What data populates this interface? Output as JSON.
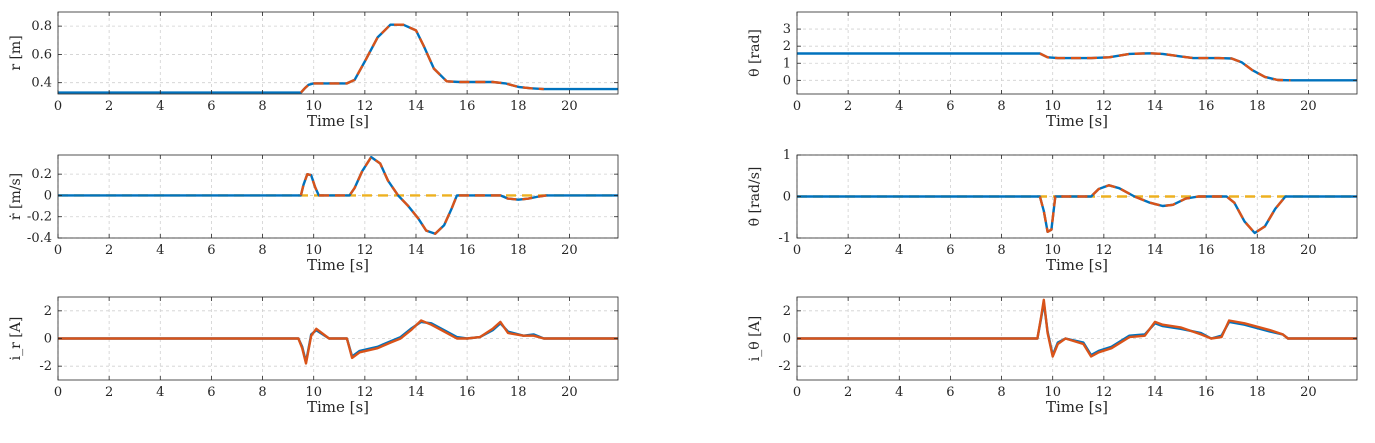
{
  "colors": {
    "measured": "#0072BD",
    "reference": "#D95319",
    "zero_ref": "#EDB120",
    "grid": "#d0d0d0",
    "axis": "#262626"
  },
  "chart_data": [
    {
      "id": "r",
      "type": "line",
      "xlabel": "Time [s]",
      "ylabel": "r [m]",
      "xlim": [
        0,
        21.9
      ],
      "ylim": [
        0.32,
        0.9
      ],
      "xticks": [
        0,
        2,
        4,
        6,
        8,
        10,
        12,
        14,
        16,
        18,
        20
      ],
      "yticks": [
        0.4,
        0.6,
        0.8
      ],
      "grid": true,
      "series": [
        {
          "style": "solid",
          "color": "#0072BD",
          "x": [
            0,
            9.5,
            9.65,
            9.8,
            10,
            11.3,
            11.6,
            12,
            12.5,
            13,
            13.5,
            14,
            14.3,
            14.7,
            15.2,
            15.7,
            16.2,
            17,
            17.5,
            18,
            18.5,
            19,
            20,
            21.9
          ],
          "y": [
            0.33,
            0.33,
            0.36,
            0.385,
            0.395,
            0.395,
            0.42,
            0.55,
            0.72,
            0.81,
            0.81,
            0.77,
            0.66,
            0.5,
            0.41,
            0.405,
            0.405,
            0.405,
            0.395,
            0.37,
            0.36,
            0.355,
            0.355,
            0.355
          ]
        },
        {
          "style": "dashed",
          "color": "#D95319",
          "x": [
            9.5,
            9.65,
            9.8,
            10,
            11.3,
            11.6,
            12,
            12.5,
            13,
            13.5,
            14,
            14.3,
            14.7,
            15.2,
            15.7,
            16.2,
            17,
            17.5,
            18,
            18.5,
            19
          ],
          "y": [
            0.33,
            0.36,
            0.385,
            0.395,
            0.395,
            0.42,
            0.55,
            0.72,
            0.81,
            0.81,
            0.77,
            0.66,
            0.5,
            0.41,
            0.405,
            0.405,
            0.405,
            0.395,
            0.37,
            0.36,
            0.355
          ]
        }
      ]
    },
    {
      "id": "theta",
      "type": "line",
      "xlabel": "Time [s]",
      "ylabel": "θ [rad]",
      "xlim": [
        0,
        21.9
      ],
      "ylim": [
        -0.8,
        4
      ],
      "xticks": [
        0,
        2,
        4,
        6,
        8,
        10,
        12,
        14,
        16,
        18,
        20
      ],
      "yticks": [
        0,
        1,
        2,
        3
      ],
      "grid": true,
      "series": [
        {
          "style": "solid",
          "color": "#0072BD",
          "x": [
            0,
            9.5,
            9.8,
            10.2,
            11.5,
            12.2,
            13,
            13.8,
            14.3,
            15,
            15.5,
            16.5,
            17,
            17.4,
            17.8,
            18.3,
            18.8,
            19.3,
            21.9
          ],
          "y": [
            1.57,
            1.57,
            1.35,
            1.3,
            1.3,
            1.35,
            1.55,
            1.58,
            1.55,
            1.4,
            1.3,
            1.3,
            1.28,
            1.05,
            0.6,
            0.2,
            0.02,
            0,
            0
          ]
        },
        {
          "style": "dashed",
          "color": "#D95319",
          "x": [
            9.5,
            9.8,
            10.2,
            11.5,
            12.2,
            13,
            13.8,
            14.3,
            15,
            15.5,
            16.5,
            17,
            17.4,
            17.8,
            18.3,
            18.8,
            19.3
          ],
          "y": [
            1.57,
            1.35,
            1.3,
            1.3,
            1.35,
            1.55,
            1.58,
            1.55,
            1.4,
            1.3,
            1.3,
            1.28,
            1.05,
            0.6,
            0.2,
            0.02,
            0
          ]
        }
      ]
    },
    {
      "id": "rdot",
      "type": "line",
      "xlabel": "Time [s]",
      "ylabel": "ṙ [m/s]",
      "xlim": [
        0,
        21.9
      ],
      "ylim": [
        -0.4,
        0.38
      ],
      "xticks": [
        0,
        2,
        4,
        6,
        8,
        10,
        12,
        14,
        16,
        18,
        20
      ],
      "yticks": [
        -0.4,
        -0.2,
        0,
        0.2
      ],
      "ytick_labels": [
        "-0.4",
        "-0.2",
        "0",
        "0.2"
      ],
      "grid": true,
      "series": [
        {
          "style": "dashed",
          "color": "#EDB120",
          "x": [
            0,
            21.9
          ],
          "y": [
            0,
            0
          ]
        },
        {
          "style": "solid",
          "color": "#0072BD",
          "x": [
            0,
            9.5,
            9.6,
            9.75,
            9.9,
            10.05,
            10.2,
            11.4,
            11.6,
            11.9,
            12.25,
            12.6,
            12.9,
            13.3,
            13.7,
            14.1,
            14.4,
            14.75,
            15.1,
            15.4,
            15.6,
            17.3,
            17.6,
            18,
            18.4,
            18.8,
            19.1,
            21.9
          ],
          "y": [
            0,
            0,
            0.1,
            0.2,
            0.19,
            0.08,
            0,
            0,
            0.07,
            0.23,
            0.36,
            0.3,
            0.14,
            0,
            -0.1,
            -0.22,
            -0.33,
            -0.36,
            -0.28,
            -0.12,
            0,
            0,
            -0.03,
            -0.04,
            -0.03,
            -0.01,
            0,
            0
          ]
        },
        {
          "style": "dashed",
          "color": "#D95319",
          "x": [
            9.5,
            9.6,
            9.75,
            9.9,
            10.05,
            10.2,
            11.4,
            11.6,
            11.9,
            12.25,
            12.6,
            12.9,
            13.3,
            13.7,
            14.1,
            14.4,
            14.75,
            15.1,
            15.4,
            15.6,
            17.3,
            17.6,
            18,
            18.4,
            18.8,
            19.1
          ],
          "y": [
            0,
            0.1,
            0.2,
            0.19,
            0.08,
            0,
            0,
            0.07,
            0.23,
            0.36,
            0.3,
            0.14,
            0,
            -0.1,
            -0.22,
            -0.33,
            -0.36,
            -0.28,
            -0.12,
            0,
            0,
            -0.03,
            -0.04,
            -0.03,
            -0.01,
            0
          ]
        }
      ]
    },
    {
      "id": "thetadot",
      "type": "line",
      "xlabel": "Time [s]",
      "ylabel": "θ̇ [rad/s]",
      "xlim": [
        0,
        21.9
      ],
      "ylim": [
        -1,
        1
      ],
      "xticks": [
        0,
        2,
        4,
        6,
        8,
        10,
        12,
        14,
        16,
        18,
        20
      ],
      "yticks": [
        -1,
        0,
        1
      ],
      "grid": true,
      "series": [
        {
          "style": "dashed",
          "color": "#EDB120",
          "x": [
            0,
            21.9
          ],
          "y": [
            0,
            0
          ]
        },
        {
          "style": "solid",
          "color": "#0072BD",
          "x": [
            0,
            9.5,
            9.65,
            9.8,
            9.95,
            10.1,
            11.5,
            11.8,
            12.2,
            12.6,
            13.2,
            13.8,
            14.3,
            14.7,
            15.2,
            15.7,
            16.8,
            17.1,
            17.5,
            17.9,
            18.3,
            18.7,
            19.1,
            21.9
          ],
          "y": [
            0,
            0,
            -0.35,
            -0.85,
            -0.8,
            0,
            0,
            0.18,
            0.27,
            0.2,
            0,
            -0.15,
            -0.23,
            -0.2,
            -0.05,
            0,
            0,
            -0.15,
            -0.6,
            -0.88,
            -0.72,
            -0.3,
            0,
            0
          ]
        },
        {
          "style": "dashed",
          "color": "#D95319",
          "x": [
            9.5,
            9.65,
            9.8,
            9.95,
            10.1,
            11.5,
            11.8,
            12.2,
            12.6,
            13.2,
            13.8,
            14.3,
            14.7,
            15.2,
            15.7,
            16.8,
            17.1,
            17.5,
            17.9,
            18.3,
            18.7,
            19.1
          ],
          "y": [
            0,
            -0.35,
            -0.85,
            -0.8,
            0,
            0,
            0.18,
            0.27,
            0.2,
            0,
            -0.15,
            -0.23,
            -0.2,
            -0.05,
            0,
            0,
            -0.15,
            -0.6,
            -0.88,
            -0.72,
            -0.3,
            0
          ]
        }
      ]
    },
    {
      "id": "ir",
      "type": "line",
      "xlabel": "Time [s]",
      "ylabel": "i_r [A]",
      "xlim": [
        0,
        21.9
      ],
      "ylim": [
        -3,
        3
      ],
      "xticks": [
        0,
        2,
        4,
        6,
        8,
        10,
        12,
        14,
        16,
        18,
        20
      ],
      "yticks": [
        -2,
        0,
        2
      ],
      "grid": true,
      "series": [
        {
          "style": "solid",
          "color": "#0072BD",
          "x": [
            0,
            9.4,
            9.55,
            9.7,
            9.9,
            10.1,
            10.6,
            11.3,
            11.5,
            11.8,
            12.5,
            13,
            13.4,
            13.8,
            14.2,
            14.6,
            15,
            15.6,
            16,
            16.5,
            17,
            17.3,
            17.6,
            18.2,
            18.6,
            19,
            21.9
          ],
          "y": [
            0,
            0,
            -0.6,
            -1.7,
            0.3,
            0.6,
            0,
            0,
            -1.3,
            -0.9,
            -0.6,
            -0.2,
            0.1,
            0.7,
            1.2,
            1.1,
            0.7,
            0.1,
            0,
            0.1,
            0.6,
            1.1,
            0.5,
            0.2,
            0.3,
            0,
            0
          ]
        },
        {
          "style": "solid",
          "color": "#D95319",
          "x": [
            0,
            9.4,
            9.55,
            9.7,
            9.9,
            10.1,
            10.6,
            11.3,
            11.5,
            11.8,
            12.5,
            13,
            13.4,
            13.8,
            14.2,
            14.6,
            15,
            15.6,
            16,
            16.5,
            17,
            17.3,
            17.6,
            18.2,
            18.6,
            19,
            21.9
          ],
          "y": [
            0,
            0,
            -0.7,
            -1.8,
            0.2,
            0.7,
            0,
            0,
            -1.4,
            -1,
            -0.7,
            -0.3,
            0,
            0.6,
            1.3,
            1,
            0.6,
            0,
            0,
            0.1,
            0.7,
            1.2,
            0.4,
            0.2,
            0.2,
            0,
            0
          ]
        }
      ]
    },
    {
      "id": "itheta",
      "type": "line",
      "xlabel": "Time [s]",
      "ylabel": "i_θ [A]",
      "xlim": [
        0,
        21.9
      ],
      "ylim": [
        -3,
        3
      ],
      "xticks": [
        0,
        2,
        4,
        6,
        8,
        10,
        12,
        14,
        16,
        18,
        20
      ],
      "yticks": [
        -2,
        0,
        2
      ],
      "grid": true,
      "series": [
        {
          "style": "solid",
          "color": "#0072BD",
          "x": [
            0,
            9.4,
            9.55,
            9.65,
            9.8,
            10,
            10.2,
            10.5,
            11.2,
            11.5,
            11.8,
            12.3,
            13,
            13.6,
            14,
            14.3,
            15,
            15.8,
            16.2,
            16.6,
            16.9,
            17.5,
            18.5,
            19,
            19.2,
            21.9
          ],
          "y": [
            0,
            0,
            1.5,
            2.6,
            0.5,
            -1.2,
            -0.3,
            0,
            -0.3,
            -1.2,
            -0.9,
            -0.6,
            0.2,
            0.3,
            1.1,
            0.9,
            0.7,
            0.4,
            0,
            0.2,
            1.2,
            1,
            0.5,
            0.3,
            0,
            0
          ]
        },
        {
          "style": "solid",
          "color": "#D95319",
          "x": [
            0,
            9.4,
            9.55,
            9.65,
            9.8,
            10,
            10.2,
            10.5,
            11.2,
            11.5,
            11.8,
            12.3,
            13,
            13.6,
            14,
            14.3,
            15,
            15.8,
            16.2,
            16.6,
            16.9,
            17.5,
            18.5,
            19,
            19.2,
            21.9
          ],
          "y": [
            0,
            0,
            1.6,
            2.8,
            0.4,
            -1.3,
            -0.4,
            0,
            -0.4,
            -1.3,
            -1,
            -0.7,
            0.1,
            0.2,
            1.2,
            1,
            0.8,
            0.3,
            0,
            0.1,
            1.3,
            1.1,
            0.6,
            0.3,
            0,
            0
          ]
        }
      ]
    }
  ]
}
